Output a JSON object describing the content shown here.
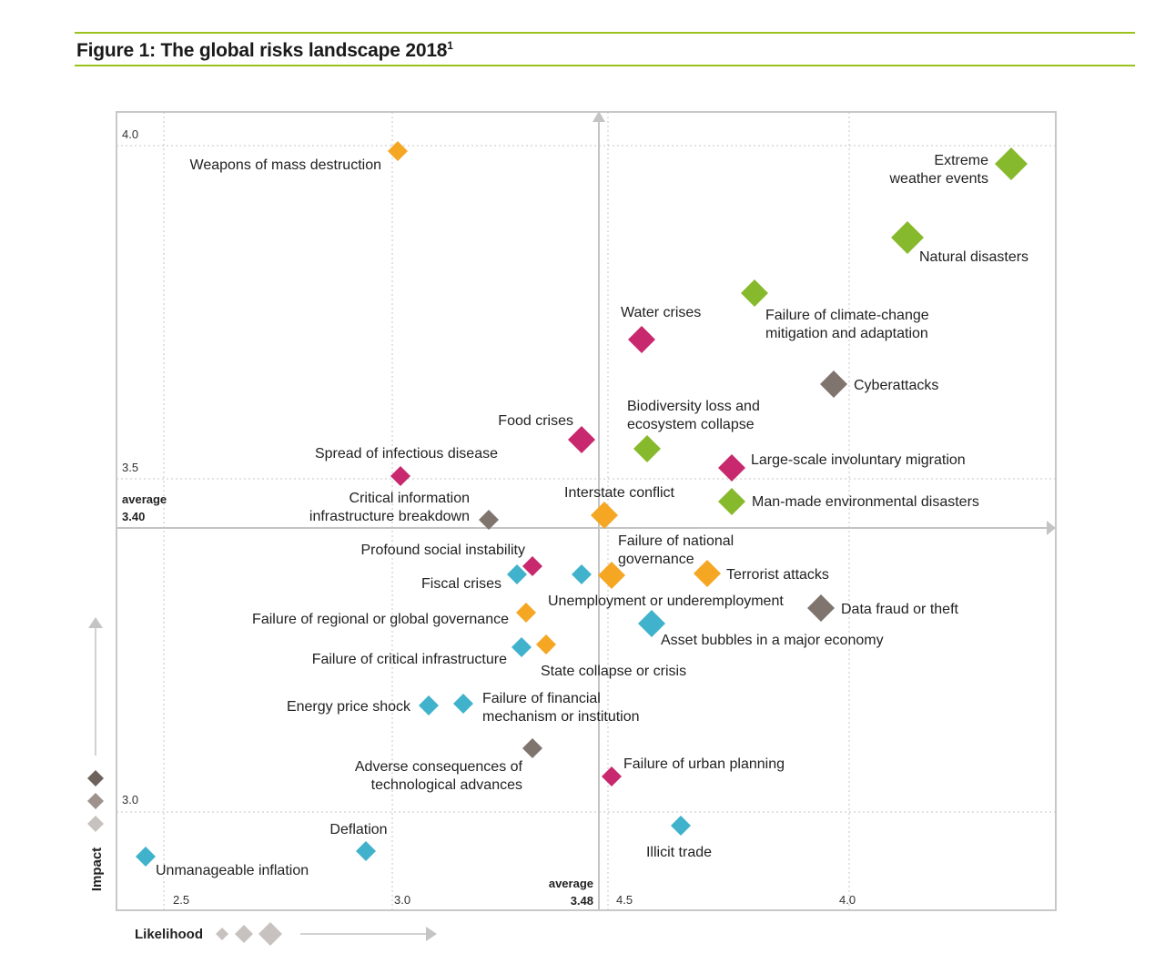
{
  "figure": {
    "title": "Figure 1: The global risks landscape 2018",
    "title_note": "1"
  },
  "colors": {
    "frame": "#c8c8c8",
    "accent_rule": "#9bc31c",
    "economic": "#2baac6",
    "environmental": "#87b92d",
    "geopolitical": "#f5a623",
    "societal": "#c8296e",
    "technological": "#7f746e",
    "legend_diamond_1": "#6d625c",
    "legend_diamond_2": "#9d928c",
    "legend_diamond_3": "#c7c2bf"
  },
  "chart_data": {
    "type": "scatter",
    "xlabel": "Likelihood",
    "ylabel": "Impact",
    "xlim": [
      2.41,
      4.54
    ],
    "ylim": [
      2.88,
      4.05
    ],
    "x_ticks": [
      "2.5",
      "3.0",
      "4.5",
      "4.0"
    ],
    "y_ticks": [
      "4.0",
      "3.5",
      "3.0"
    ],
    "average_x_label": "average",
    "average_x_value": "3.48",
    "average_y_label": "average",
    "average_y_value": "3.40",
    "points": [
      {
        "label": "Weapons of mass destruction",
        "x": 3.02,
        "y": 3.99,
        "category": "geopolitical",
        "size": 1
      },
      {
        "label": "Extreme weather events",
        "x": 4.41,
        "y": 3.96,
        "category": "environmental",
        "size": 3
      },
      {
        "label": "Natural disasters",
        "x": 4.17,
        "y": 3.84,
        "category": "environmental",
        "size": 3
      },
      {
        "label": "Failure of climate-change mitigation and adaptation",
        "x": 3.82,
        "y": 3.76,
        "category": "environmental",
        "size": 2
      },
      {
        "label": "Water crises",
        "x": 3.57,
        "y": 3.69,
        "category": "societal",
        "size": 2
      },
      {
        "label": "Cyberattacks",
        "x": 4.0,
        "y": 3.63,
        "category": "technological",
        "size": 2
      },
      {
        "label": "Food crises",
        "x": 3.43,
        "y": 3.56,
        "category": "societal",
        "size": 2
      },
      {
        "label": "Biodiversity loss and ecosystem collapse",
        "x": 3.58,
        "y": 3.55,
        "category": "environmental",
        "size": 2
      },
      {
        "label": "Large-scale involuntary migration",
        "x": 3.77,
        "y": 3.52,
        "category": "societal",
        "size": 2
      },
      {
        "label": "Spread of infectious disease",
        "x": 3.02,
        "y": 3.5,
        "category": "societal",
        "size": 1
      },
      {
        "label": "Man-made environmental disasters",
        "x": 3.77,
        "y": 3.44,
        "category": "environmental",
        "size": 2
      },
      {
        "label": "Critical information infrastructure breakdown",
        "x": 3.24,
        "y": 3.41,
        "category": "technological",
        "size": 1
      },
      {
        "label": "Interstate conflict",
        "x": 3.49,
        "y": 3.41,
        "category": "geopolitical",
        "size": 2
      },
      {
        "label": "Profound social instability",
        "x": 3.34,
        "y": 3.33,
        "category": "societal",
        "size": 1
      },
      {
        "label": "Fiscal crises",
        "x": 3.31,
        "y": 3.32,
        "category": "economic",
        "size": 1
      },
      {
        "label": "",
        "x": 3.42,
        "y": 3.32,
        "category": "economic",
        "size": 1
      },
      {
        "label": "Failure of national governance",
        "x": 3.52,
        "y": 3.32,
        "category": "geopolitical",
        "size": 2
      },
      {
        "label": "Terrorist attacks",
        "x": 3.74,
        "y": 3.32,
        "category": "geopolitical",
        "size": 2
      },
      {
        "label": "Unemployment or underemployment",
        "x": 3.52,
        "y": 3.32,
        "category": "economic",
        "size": 1
      },
      {
        "label": "Data fraud or theft",
        "x": 3.96,
        "y": 3.27,
        "category": "technological",
        "size": 2
      },
      {
        "label": "Failure of regional or global governance",
        "x": 3.32,
        "y": 3.28,
        "category": "geopolitical",
        "size": 1
      },
      {
        "label": "Asset bubbles in a major economy",
        "x": 3.59,
        "y": 3.26,
        "category": "economic",
        "size": 2
      },
      {
        "label": "Failure of critical infrastructure",
        "x": 3.32,
        "y": 3.22,
        "category": "economic",
        "size": 1
      },
      {
        "label": "State collapse or crisis",
        "x": 3.35,
        "y": 3.22,
        "category": "geopolitical",
        "size": 1
      },
      {
        "label": "Energy price shock",
        "x": 3.09,
        "y": 3.15,
        "category": "economic",
        "size": 1
      },
      {
        "label": "Failure of financial mechanism or institution",
        "x": 3.17,
        "y": 3.15,
        "category": "economic",
        "size": 1
      },
      {
        "label": "Adverse consequences of technological advances",
        "x": 3.34,
        "y": 3.09,
        "category": "technological",
        "size": 1
      },
      {
        "label": "Failure of urban planning",
        "x": 3.5,
        "y": 3.05,
        "category": "societal",
        "size": 1
      },
      {
        "label": "Illicit trade",
        "x": 3.66,
        "y": 2.98,
        "category": "economic",
        "size": 1
      },
      {
        "label": "Deflation",
        "x": 2.93,
        "y": 2.94,
        "category": "economic",
        "size": 1
      },
      {
        "label": "Unmanageable inflation",
        "x": 2.44,
        "y": 2.93,
        "category": "economic",
        "size": 1
      }
    ],
    "label_lines": {
      "Extreme weather events": [
        "Extreme",
        "weather events"
      ],
      "Failure of climate-change mitigation and adaptation": [
        "Failure of climate-change",
        "mitigation and adaptation"
      ],
      "Biodiversity loss and ecosystem collapse": [
        "Biodiversity loss and",
        "ecosystem collapse"
      ],
      "Critical information infrastructure breakdown": [
        "Critical information",
        "infrastructure breakdown"
      ],
      "Failure of national governance": [
        "Failure of national",
        "governance"
      ],
      "Failure of financial mechanism or institution": [
        "Failure of  financial",
        "mechanism or institution"
      ],
      "Adverse consequences of technological advances": [
        "Adverse consequences of",
        "technological advances"
      ]
    }
  }
}
